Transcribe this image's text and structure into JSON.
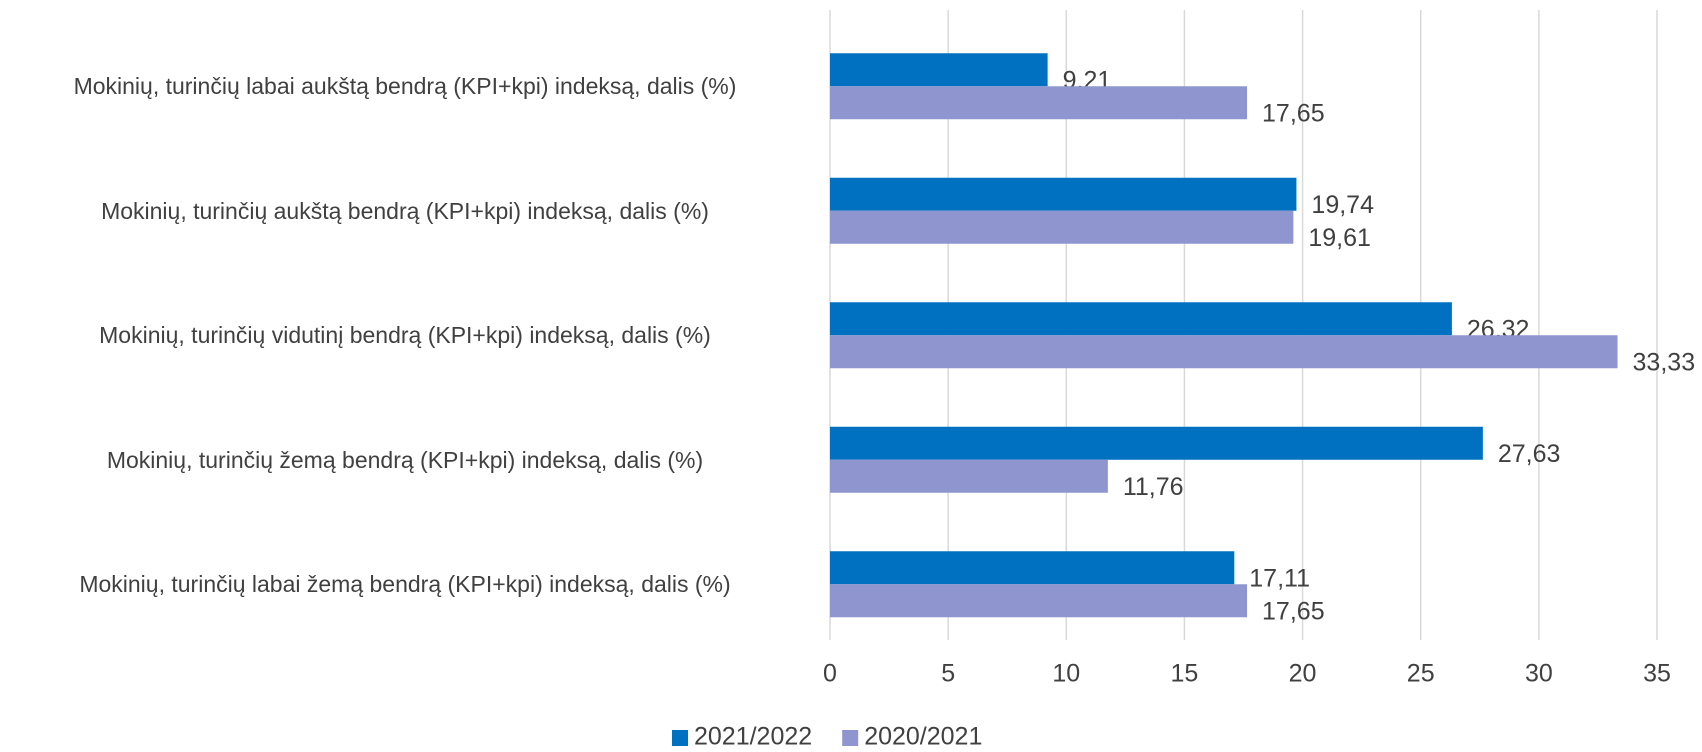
{
  "chart_data": {
    "type": "bar",
    "orientation": "horizontal",
    "categories": [
      "Mokinių, turinčių labai aukštą bendrą (KPI+kpi) indeksą, dalis (%)",
      "Mokinių, turinčių aukštą bendrą (KPI+kpi) indeksą, dalis (%)",
      "Mokinių, turinčių vidutinį bendrą (KPI+kpi) indeksą, dalis (%)",
      "Mokinių, turinčių žemą bendrą (KPI+kpi) indeksą, dalis (%)",
      "Mokinių, turinčių labai žemą bendrą (KPI+kpi) indeksą, dalis (%)"
    ],
    "series": [
      {
        "name": "2021/2022",
        "color": "#0070c0",
        "values": [
          9.21,
          19.74,
          26.32,
          27.63,
          17.11
        ],
        "value_labels": [
          "9,21",
          "19,74",
          "26,32",
          "27,63",
          "17,11"
        ]
      },
      {
        "name": "2020/2021",
        "color": "#8f96cf",
        "values": [
          17.65,
          19.61,
          33.33,
          11.76,
          17.65
        ],
        "value_labels": [
          "17,65",
          "19,61",
          "33,33",
          "11,76",
          "17,65"
        ]
      }
    ],
    "xlim": [
      0,
      35
    ],
    "xticks": [
      0,
      5,
      10,
      15,
      20,
      25,
      30,
      35
    ],
    "grid": true,
    "legend": "bottom"
  }
}
